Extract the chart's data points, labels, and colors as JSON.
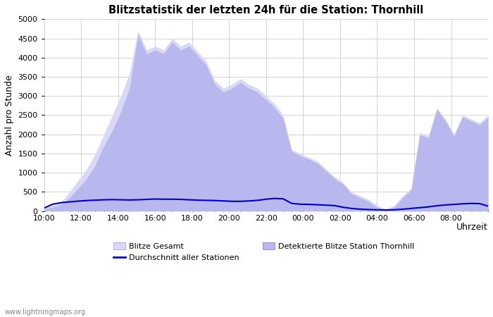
{
  "title": "Blitzstatistik der letzten 24h für die Station: Thornhill",
  "xlabel": "Uhrzeit",
  "ylabel": "Anzahl pro Stunde",
  "ylim": [
    0,
    5000
  ],
  "yticks": [
    0,
    500,
    1000,
    1500,
    2000,
    2500,
    3000,
    3500,
    4000,
    4500,
    5000
  ],
  "x_labels": [
    "10:00",
    "12:00",
    "14:00",
    "16:00",
    "18:00",
    "20:00",
    "22:00",
    "00:00",
    "02:00",
    "04:00",
    "06:00",
    "08:00",
    ""
  ],
  "color_gesamt": "#d8d8f8",
  "color_station": "#b8b8ee",
  "color_avg_line": "#0000cc",
  "background": "#ffffff",
  "watermark": "www.lightningmaps.org",
  "legend_entries": [
    "Blitze Gesamt",
    "Detektierte Blitze Station Thornhill",
    "Durchschnitt aller Stationen"
  ],
  "gesamt": [
    80,
    150,
    250,
    500,
    800,
    1100,
    1500,
    2000,
    2500,
    3000,
    3600,
    4700,
    4200,
    4300,
    4200,
    4500,
    4300,
    4400,
    4150,
    3900,
    3400,
    3200,
    3300,
    3450,
    3300,
    3200,
    3000,
    2800,
    2500,
    1600,
    1500,
    1400,
    1300,
    1100,
    900,
    750,
    500,
    400,
    300,
    150,
    50,
    150,
    400,
    600,
    2050,
    1950,
    2700,
    2400,
    2000,
    2500,
    2400,
    2300,
    2500
  ],
  "station": [
    50,
    100,
    180,
    350,
    600,
    850,
    1200,
    1700,
    2100,
    2600,
    3200,
    4600,
    4100,
    4200,
    4100,
    4400,
    4200,
    4300,
    4050,
    3800,
    3300,
    3100,
    3200,
    3350,
    3200,
    3100,
    2900,
    2700,
    2400,
    1550,
    1450,
    1350,
    1250,
    1050,
    850,
    700,
    450,
    350,
    250,
    100,
    30,
    100,
    350,
    550,
    2000,
    1900,
    2650,
    2350,
    1950,
    2450,
    2350,
    2250,
    2450
  ],
  "avg": [
    80,
    180,
    220,
    240,
    260,
    275,
    285,
    295,
    300,
    295,
    290,
    295,
    305,
    315,
    310,
    310,
    305,
    295,
    285,
    280,
    275,
    265,
    255,
    255,
    265,
    280,
    310,
    330,
    320,
    200,
    180,
    175,
    165,
    155,
    145,
    100,
    70,
    50,
    40,
    35,
    30,
    35,
    50,
    70,
    90,
    110,
    140,
    160,
    175,
    190,
    200,
    195,
    130
  ]
}
